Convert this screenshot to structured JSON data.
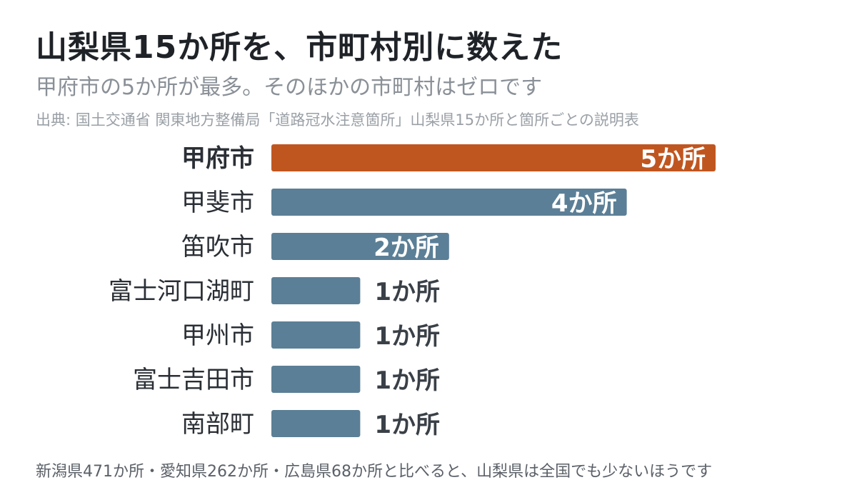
{
  "header": {
    "title": "山梨県15か所を、市町村別に数えた",
    "subtitle": "甲府市の5か所が最多。そのほかの市町村はゼロです",
    "source": "出典: 国土交通省 関東地方整備局「道路冠水注意箇所」山梨県15か所と箇所ごとの説明表"
  },
  "footnote": "新潟県471か所・愛知県262か所・広島県68か所と比べると、山梨県は全国でも少ないほうです",
  "colors": {
    "highlight": "#c0561f",
    "bar": "#5b7f96",
    "label_inside": "#ffffff",
    "label_outside": "#3a4047",
    "category": "#2a2f35"
  },
  "chart_data": {
    "type": "bar",
    "orientation": "horizontal",
    "unit": "か所",
    "categories": [
      "甲府市",
      "甲斐市",
      "笛吹市",
      "富士河口湖町",
      "甲州市",
      "富士吉田市",
      "南部町"
    ],
    "values": [
      5,
      4,
      2,
      1,
      1,
      1,
      1
    ],
    "value_labels": [
      "5か所",
      "4か所",
      "2か所",
      "1か所",
      "1か所",
      "1か所",
      "1か所"
    ],
    "highlight": "甲府市",
    "xlim": [
      0,
      5
    ],
    "grid": false,
    "legend": "none"
  }
}
